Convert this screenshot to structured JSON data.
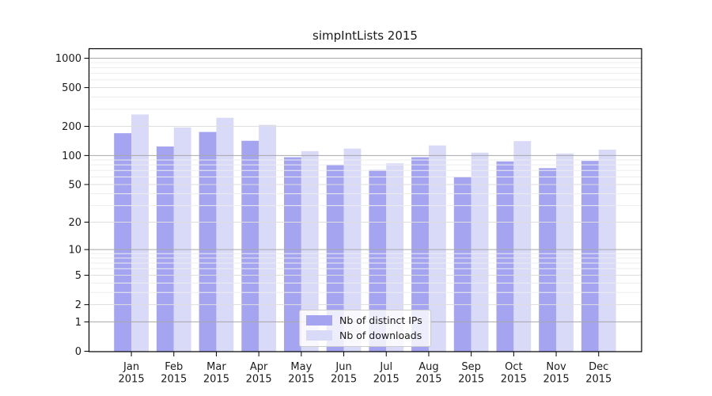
{
  "chart_data": {
    "type": "bar",
    "title": "simpIntLists 2015",
    "year_label": "2015",
    "categories": [
      "Jan",
      "Feb",
      "Mar",
      "Apr",
      "May",
      "Jun",
      "Jul",
      "Aug",
      "Sep",
      "Oct",
      "Nov",
      "Dec"
    ],
    "series": [
      {
        "name": "Nb of distinct IPs",
        "color": "#a4a4f0",
        "values": [
          170,
          124,
          175,
          142,
          96,
          80,
          71,
          96,
          60,
          87,
          74,
          88
        ]
      },
      {
        "name": "Nb of downloads",
        "color": "#d9d9f8",
        "values": [
          265,
          195,
          245,
          207,
          111,
          118,
          83,
          127,
          107,
          141,
          105,
          115
        ]
      }
    ],
    "yscale": "log10(1+v)",
    "yticks": [
      0,
      1,
      2,
      5,
      10,
      20,
      50,
      100,
      200,
      500,
      1000
    ],
    "minor_gridlines": [
      3,
      4,
      6,
      7,
      8,
      9,
      30,
      40,
      60,
      70,
      80,
      90,
      300,
      400,
      600,
      700,
      800,
      900
    ],
    "major_gridlines": [
      1,
      10,
      100,
      1000
    ],
    "ylim": [
      0,
      1240
    ],
    "grid": true,
    "legend_position": "bottom-center"
  },
  "colors": {
    "axis": "#000000",
    "grid_major": "#a8a8a8",
    "grid_tick": "#dedede",
    "grid_minor": "#ededed",
    "background": "#ffffff"
  }
}
